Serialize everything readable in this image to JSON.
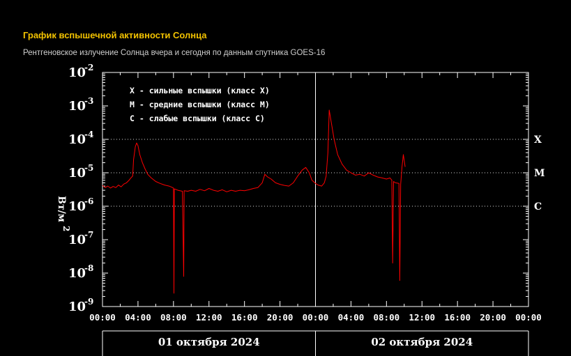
{
  "header": {
    "title": "График вспышечной активности Солнца",
    "subtitle": "Рентгеновское излучение Солнца вчера и сегодня по данным спутника GOES-16"
  },
  "chart_data": {
    "type": "line",
    "yscale": "log",
    "ylabel": "Вт/м",
    "ylabel_exp": "2",
    "ylim": [
      1e-09,
      0.01
    ],
    "y_ticks": [
      {
        "base": "10",
        "exp": "-2",
        "value": 0.01
      },
      {
        "base": "10",
        "exp": "-3",
        "value": 0.001
      },
      {
        "base": "10",
        "exp": "-4",
        "value": 0.0001
      },
      {
        "base": "10",
        "exp": "-5",
        "value": 1e-05
      },
      {
        "base": "10",
        "exp": "-6",
        "value": 1e-06
      },
      {
        "base": "10",
        "exp": "-7",
        "value": 1e-07
      },
      {
        "base": "10",
        "exp": "-8",
        "value": 1e-08
      },
      {
        "base": "10",
        "exp": "-9",
        "value": 1e-09
      }
    ],
    "xlim_hours": [
      0,
      48
    ],
    "x_ticks": [
      {
        "label": "00:00",
        "hour": 0
      },
      {
        "label": "04:00",
        "hour": 4
      },
      {
        "label": "08:00",
        "hour": 8
      },
      {
        "label": "12:00",
        "hour": 12
      },
      {
        "label": "16:00",
        "hour": 16
      },
      {
        "label": "20:00",
        "hour": 20
      },
      {
        "label": "00:00",
        "hour": 24
      },
      {
        "label": "04:00",
        "hour": 28
      },
      {
        "label": "08:00",
        "hour": 32
      },
      {
        "label": "12:00",
        "hour": 36
      },
      {
        "label": "16:00",
        "hour": 40
      },
      {
        "label": "20:00",
        "hour": 44
      },
      {
        "label": "00:00",
        "hour": 48
      }
    ],
    "dates": [
      {
        "label": "01 октября 2024",
        "start_hour": 0,
        "end_hour": 24
      },
      {
        "label": "02 октября 2024",
        "start_hour": 24,
        "end_hour": 48
      }
    ],
    "day_divider_hour": 24,
    "class_lines": [
      {
        "label": "X",
        "value": 0.0001
      },
      {
        "label": "M",
        "value": 1e-05
      },
      {
        "label": "C",
        "value": 1e-06
      }
    ],
    "legend": [
      "X - сильные вспышки (класс X)",
      "M - средние вспышки (класс M)",
      "C - слабые вспышки (класс C)"
    ],
    "grid": "dotted",
    "series": [
      {
        "color": "#ff0000",
        "points": [
          [
            0.0,
            4.2e-06
          ],
          [
            0.3,
            3.6e-06
          ],
          [
            0.6,
            4e-06
          ],
          [
            0.9,
            3.5e-06
          ],
          [
            1.2,
            3.9e-06
          ],
          [
            1.5,
            3.6e-06
          ],
          [
            1.8,
            4.3e-06
          ],
          [
            2.1,
            3.8e-06
          ],
          [
            2.4,
            4.6e-06
          ],
          [
            2.7,
            5e-06
          ],
          [
            3.0,
            6e-06
          ],
          [
            3.2,
            7e-06
          ],
          [
            3.4,
            8e-06
          ],
          [
            3.5,
            2.5e-05
          ],
          [
            3.7,
            6e-05
          ],
          [
            3.85,
            7.8e-05
          ],
          [
            4.0,
            6.5e-05
          ],
          [
            4.2,
            3.5e-05
          ],
          [
            4.5,
            2e-05
          ],
          [
            4.8,
            1.3e-05
          ],
          [
            5.1,
            9e-06
          ],
          [
            5.5,
            7e-06
          ],
          [
            6.0,
            5.5e-06
          ],
          [
            6.5,
            4.8e-06
          ],
          [
            7.0,
            4.3e-06
          ],
          [
            7.5,
            4e-06
          ],
          [
            7.8,
            3.7e-06
          ],
          [
            8.0,
            3.5e-06
          ],
          [
            8.05,
            2.5e-09
          ],
          [
            8.1,
            3.3e-06
          ],
          [
            8.5,
            3e-06
          ],
          [
            9.0,
            2.8e-06
          ],
          [
            9.15,
            8e-09
          ],
          [
            9.2,
            2.9e-06
          ],
          [
            9.6,
            2.8e-06
          ],
          [
            10.0,
            3e-06
          ],
          [
            10.5,
            2.8e-06
          ],
          [
            11.0,
            3.2e-06
          ],
          [
            11.5,
            2.9e-06
          ],
          [
            12.0,
            3.4e-06
          ],
          [
            12.5,
            3e-06
          ],
          [
            13.0,
            2.8e-06
          ],
          [
            13.5,
            3.1e-06
          ],
          [
            14.0,
            2.7e-06
          ],
          [
            14.5,
            3e-06
          ],
          [
            15.0,
            2.8e-06
          ],
          [
            15.5,
            3e-06
          ],
          [
            16.0,
            2.9e-06
          ],
          [
            16.5,
            3.1e-06
          ],
          [
            17.0,
            3.4e-06
          ],
          [
            17.5,
            3.6e-06
          ],
          [
            18.0,
            5e-06
          ],
          [
            18.3,
            9e-06
          ],
          [
            18.6,
            7.5e-06
          ],
          [
            19.0,
            6.5e-06
          ],
          [
            19.5,
            5e-06
          ],
          [
            20.0,
            4.5e-06
          ],
          [
            20.5,
            4.2e-06
          ],
          [
            21.0,
            4e-06
          ],
          [
            21.5,
            5e-06
          ],
          [
            22.0,
            8e-06
          ],
          [
            22.5,
            1.2e-05
          ],
          [
            22.9,
            1.45e-05
          ],
          [
            23.3,
            1e-05
          ],
          [
            23.6,
            6e-06
          ],
          [
            24.0,
            4.8e-06
          ],
          [
            24.3,
            4.3e-06
          ],
          [
            24.7,
            4e-06
          ],
          [
            25.0,
            5e-06
          ],
          [
            25.2,
            8e-06
          ],
          [
            25.4,
            4e-05
          ],
          [
            25.55,
            0.00075
          ],
          [
            25.8,
            0.0003
          ],
          [
            26.1,
            0.0001
          ],
          [
            26.5,
            3.5e-05
          ],
          [
            27.0,
            1.8e-05
          ],
          [
            27.5,
            1.2e-05
          ],
          [
            28.0,
            1e-05
          ],
          [
            28.5,
            8.5e-06
          ],
          [
            29.0,
            9e-06
          ],
          [
            29.5,
            8e-06
          ],
          [
            30.0,
            1e-05
          ],
          [
            30.5,
            8.5e-06
          ],
          [
            31.0,
            7.5e-06
          ],
          [
            31.5,
            7e-06
          ],
          [
            32.0,
            6.5e-06
          ],
          [
            32.4,
            7e-06
          ],
          [
            32.6,
            6e-06
          ],
          [
            32.7,
            2e-08
          ],
          [
            32.8,
            5.5e-06
          ],
          [
            33.0,
            5e-06
          ],
          [
            33.4,
            4.8e-06
          ],
          [
            33.5,
            6e-09
          ],
          [
            33.6,
            4.5e-06
          ],
          [
            33.75,
            1.5e-05
          ],
          [
            33.9,
            3.5e-05
          ],
          [
            34.1,
            1.5e-05
          ]
        ]
      }
    ]
  }
}
